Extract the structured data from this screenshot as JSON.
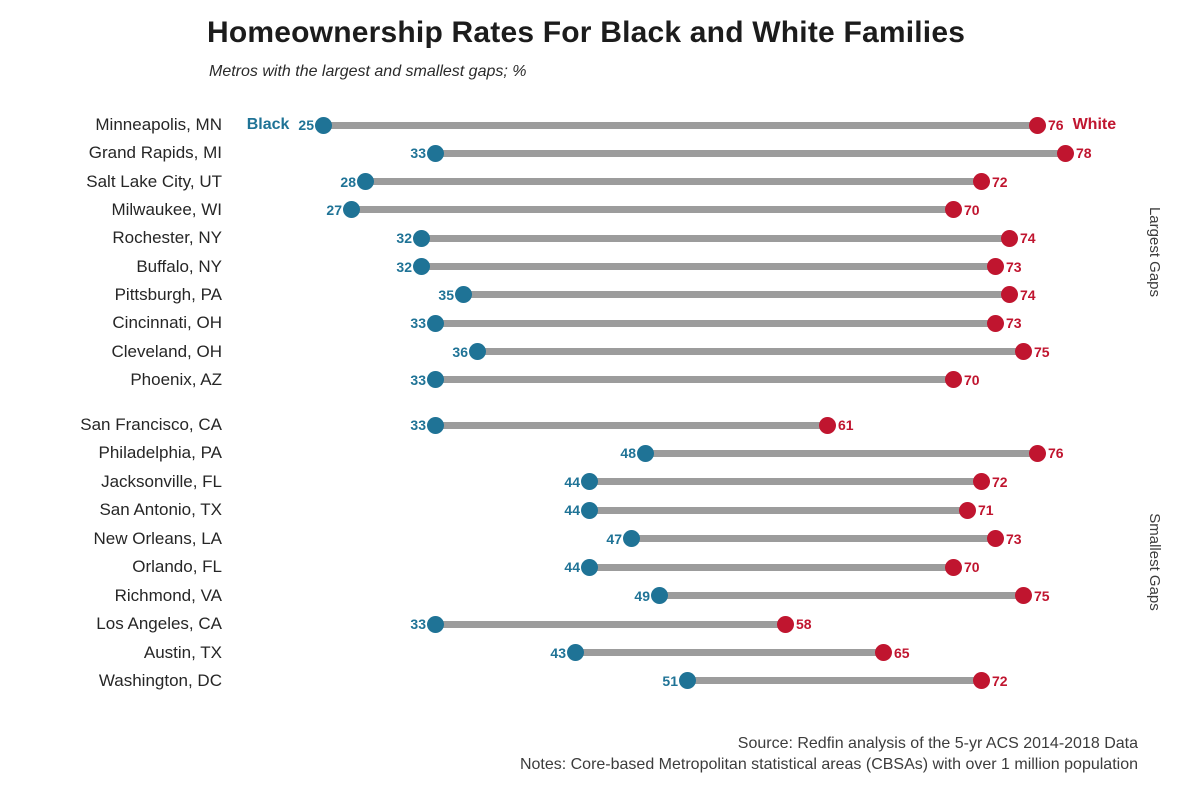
{
  "chart_data": {
    "type": "scatter",
    "variant": "dumbbell",
    "title": "Homeownership Rates For Black and White Families",
    "subtitle": "Metros with the largest and smallest gaps; %",
    "xlim": [
      20,
      85
    ],
    "grid": false,
    "legend": {
      "black_label": "Black",
      "white_label": "White",
      "position": "inline-first-row"
    },
    "colors": {
      "black": "#1f7396",
      "white": "#c0152f",
      "connector": "#9c9c9c"
    },
    "categories": [
      "Minneapolis, MN",
      "Grand Rapids, MI",
      "Salt Lake City, UT",
      "Milwaukee, WI",
      "Rochester, NY",
      "Buffalo, NY",
      "Pittsburgh, PA",
      "Cincinnati, OH",
      "Cleveland, OH",
      "Phoenix, AZ",
      "San Francisco, CA",
      "Philadelphia, PA",
      "Jacksonville, FL",
      "San Antonio, TX",
      "New Orleans, LA",
      "Orlando, FL",
      "Richmond, VA",
      "Los Angeles, CA",
      "Austin, TX",
      "Washington, DC"
    ],
    "series": [
      {
        "name": "Black",
        "values": [
          25,
          33,
          28,
          27,
          32,
          32,
          35,
          33,
          36,
          33,
          33,
          48,
          44,
          44,
          47,
          44,
          49,
          33,
          43,
          51
        ]
      },
      {
        "name": "White",
        "values": [
          76,
          78,
          72,
          70,
          74,
          73,
          74,
          73,
          75,
          70,
          61,
          76,
          72,
          71,
          73,
          70,
          75,
          58,
          65,
          72
        ]
      }
    ],
    "groups": [
      {
        "label": "Largest Gaps",
        "start": 0,
        "count": 10
      },
      {
        "label": "Smallest Gaps",
        "start": 10,
        "count": 10
      }
    ]
  },
  "footer": {
    "source": "Source: Redfin analysis of the 5-yr ACS 2014-2018 Data",
    "notes": "Notes: Core-based Metropolitan statistical areas (CBSAs) with over 1 million population"
  }
}
